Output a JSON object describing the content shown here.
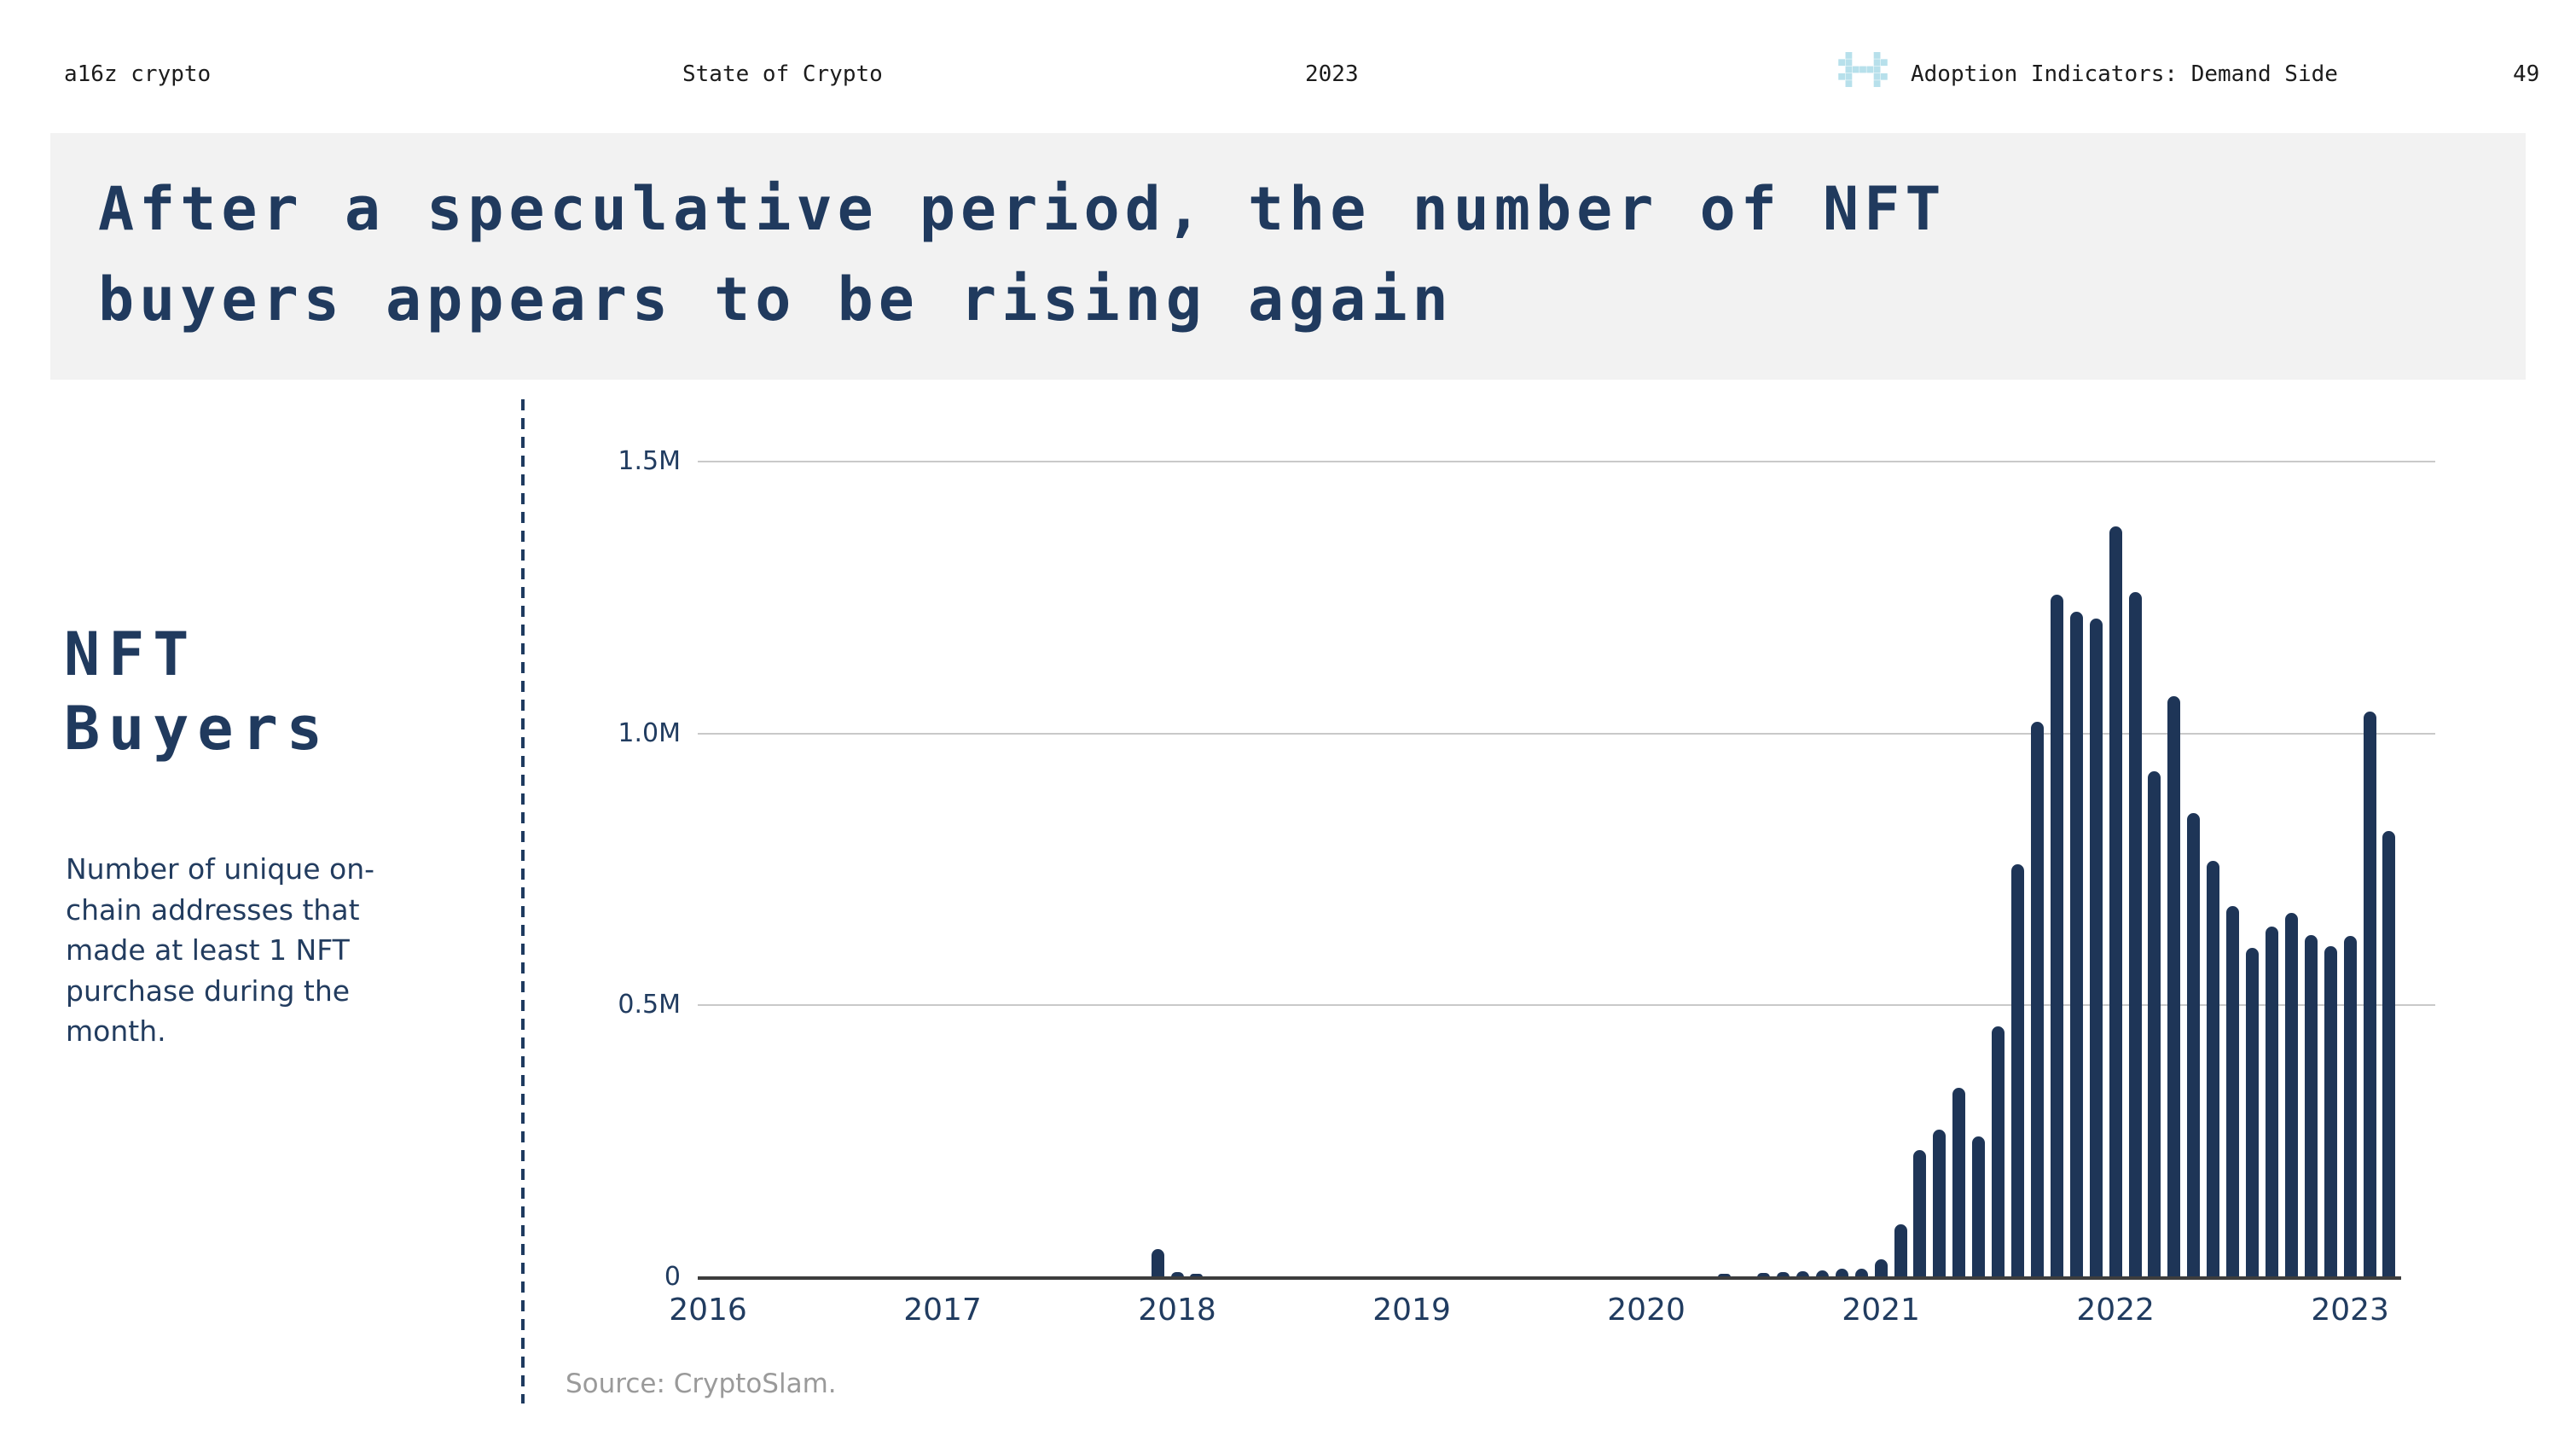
{
  "header": {
    "brand": "a16z crypto",
    "report": "State of Crypto",
    "year": "2023",
    "section": "Adoption Indicators: Demand Side",
    "page": "49"
  },
  "title": {
    "line1": "After a speculative period, the number of NFT",
    "line2": "buyers appears to be rising again"
  },
  "sidebar": {
    "heading_line1": "NFT",
    "heading_line2": "Buyers",
    "description": "Number of unique on-chain addresses that made at least 1 NFT purchase during the month."
  },
  "source": {
    "text": "Source: CryptoSlam."
  },
  "colors": {
    "navy": "#203a5e",
    "bar": "#1e3557",
    "icon_blue": "#b7e0eb",
    "banner_bg": "#f2f2f2",
    "grid": "#c9c9c9",
    "axis": "#3d3d3d",
    "source_gray": "#9a9a9a"
  },
  "chart_data": {
    "type": "bar",
    "title": "NFT Buyers",
    "unit": "unique on-chain addresses making at least 1 NFT purchase per month",
    "start_month": "2016-01",
    "end_month": "2023-03",
    "ylim": [
      0,
      1500000
    ],
    "grid": "horizontal",
    "legend": "none",
    "y_ticks": [
      {
        "label": "1.5M",
        "value": 1500000
      },
      {
        "label": "1.0M",
        "value": 1000000
      },
      {
        "label": "0.5M",
        "value": 500000
      },
      {
        "label": "0",
        "value": 0
      }
    ],
    "x_ticks": [
      {
        "label": "2016",
        "month_index": 0
      },
      {
        "label": "2017",
        "month_index": 12
      },
      {
        "label": "2018",
        "month_index": 24
      },
      {
        "label": "2019",
        "month_index": 36
      },
      {
        "label": "2020",
        "month_index": 48
      },
      {
        "label": "2021",
        "month_index": 60
      },
      {
        "label": "2022",
        "month_index": 72
      },
      {
        "label": "2023",
        "month_index": 84
      }
    ],
    "series": [
      {
        "name": "NFT Buyers",
        "values": [
          1000,
          1000,
          1000,
          1000,
          1000,
          1000,
          1000,
          1000,
          1000,
          1000,
          1000,
          1000,
          1000,
          1000,
          1000,
          1500,
          1500,
          2000,
          2000,
          2500,
          2500,
          3000,
          3800,
          52000,
          9000,
          6000,
          3500,
          3000,
          3000,
          2500,
          2500,
          2500,
          2000,
          2000,
          2000,
          2000,
          2000,
          2000,
          2500,
          2500,
          3000,
          3000,
          3000,
          3000,
          3000,
          3000,
          3500,
          3500,
          3000,
          3000,
          3000,
          3800,
          7000,
          2000,
          8000,
          9000,
          11000,
          13000,
          16000,
          16000,
          33000,
          98000,
          234000,
          272000,
          349000,
          259000,
          461000,
          760000,
          1022000,
          1255000,
          1224000,
          1212000,
          1380000,
          1260000,
          930000,
          1069000,
          854000,
          766000,
          683000,
          605000,
          645000,
          670000,
          629000,
          609000,
          627000,
          1040000,
          820000
        ]
      }
    ]
  }
}
